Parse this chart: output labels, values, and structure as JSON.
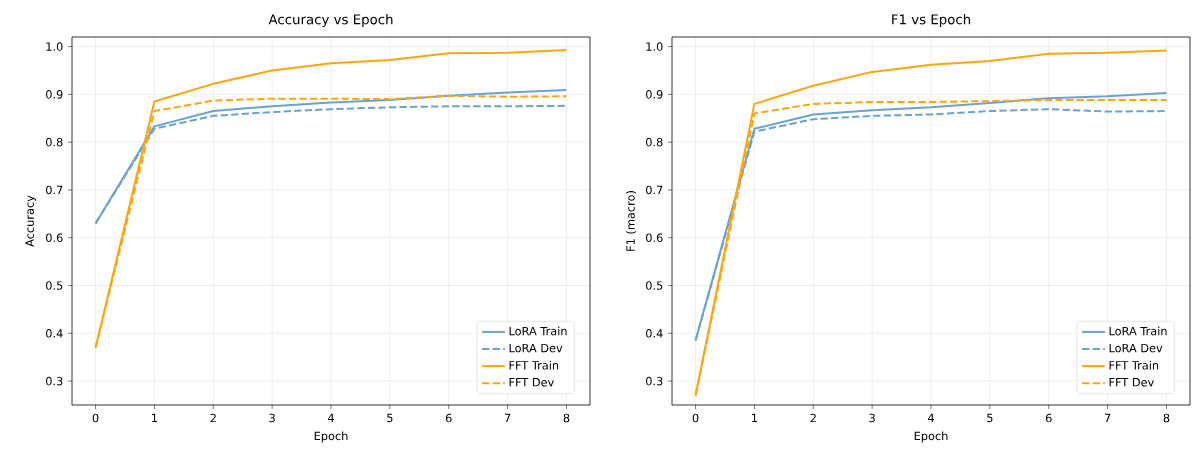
{
  "chart_data": [
    {
      "type": "line",
      "title": "Accuracy vs Epoch",
      "xlabel": "Epoch",
      "ylabel": "Accuracy",
      "x": [
        0,
        1,
        2,
        3,
        4,
        5,
        6,
        7,
        8
      ],
      "xlim": [
        -0.4,
        8.4
      ],
      "ylim": [
        0.25,
        1.02
      ],
      "xticks": [
        0,
        1,
        2,
        3,
        4,
        5,
        6,
        7,
        8
      ],
      "yticks": [
        0.3,
        0.4,
        0.5,
        0.6,
        0.7,
        0.8,
        0.9,
        {
          "value": 1.0,
          "label": "1.0"
        }
      ],
      "grid": true,
      "legend": "bottom right",
      "series": [
        {
          "name": "LoRA Train",
          "color": "#6aa2d0",
          "line_style": "solid",
          "values": [
            0.63,
            0.833,
            0.865,
            0.875,
            0.883,
            0.888,
            0.897,
            0.904,
            0.909
          ]
        },
        {
          "name": "LoRA Dev",
          "color": "#6aa2d0",
          "line_style": "dashed",
          "values": [
            0.63,
            0.828,
            0.855,
            0.863,
            0.869,
            0.873,
            0.875,
            0.875,
            0.876
          ]
        },
        {
          "name": "FFT Train",
          "color": "#ffa50f",
          "line_style": "solid",
          "values": [
            0.37,
            0.885,
            0.922,
            0.95,
            0.965,
            0.972,
            0.986,
            0.987,
            0.993
          ]
        },
        {
          "name": "FFT Dev",
          "color": "#ffa50f",
          "line_style": "dashed",
          "values": [
            0.37,
            0.865,
            0.887,
            0.891,
            0.891,
            0.89,
            0.897,
            0.895,
            0.896
          ]
        }
      ]
    },
    {
      "type": "line",
      "title": "F1 vs Epoch",
      "xlabel": "Epoch",
      "ylabel": "F1 (macro)",
      "x": [
        0,
        1,
        2,
        3,
        4,
        5,
        6,
        7,
        8
      ],
      "xlim": [
        -0.4,
        8.4
      ],
      "ylim": [
        0.25,
        1.02
      ],
      "xticks": [
        0,
        1,
        2,
        3,
        4,
        5,
        6,
        7,
        8
      ],
      "yticks": [
        0.3,
        0.4,
        0.5,
        0.6,
        0.7,
        0.8,
        0.9,
        {
          "value": 1.0,
          "label": "1.0"
        }
      ],
      "grid": true,
      "legend": "bottom right",
      "series": [
        {
          "name": "LoRA Train",
          "color": "#6aa2d0",
          "line_style": "solid",
          "values": [
            0.385,
            0.828,
            0.858,
            0.867,
            0.873,
            0.882,
            0.892,
            0.896,
            0.903
          ]
        },
        {
          "name": "LoRA Dev",
          "color": "#6aa2d0",
          "line_style": "dashed",
          "values": [
            0.385,
            0.822,
            0.848,
            0.855,
            0.858,
            0.865,
            0.869,
            0.864,
            0.865
          ]
        },
        {
          "name": "FFT Train",
          "color": "#ffa50f",
          "line_style": "solid",
          "values": [
            0.27,
            0.88,
            0.918,
            0.947,
            0.962,
            0.97,
            0.985,
            0.987,
            0.992
          ]
        },
        {
          "name": "FFT Dev",
          "color": "#ffa50f",
          "line_style": "dashed",
          "values": [
            0.27,
            0.86,
            0.88,
            0.884,
            0.884,
            0.886,
            0.888,
            0.888,
            0.888
          ]
        }
      ]
    }
  ]
}
